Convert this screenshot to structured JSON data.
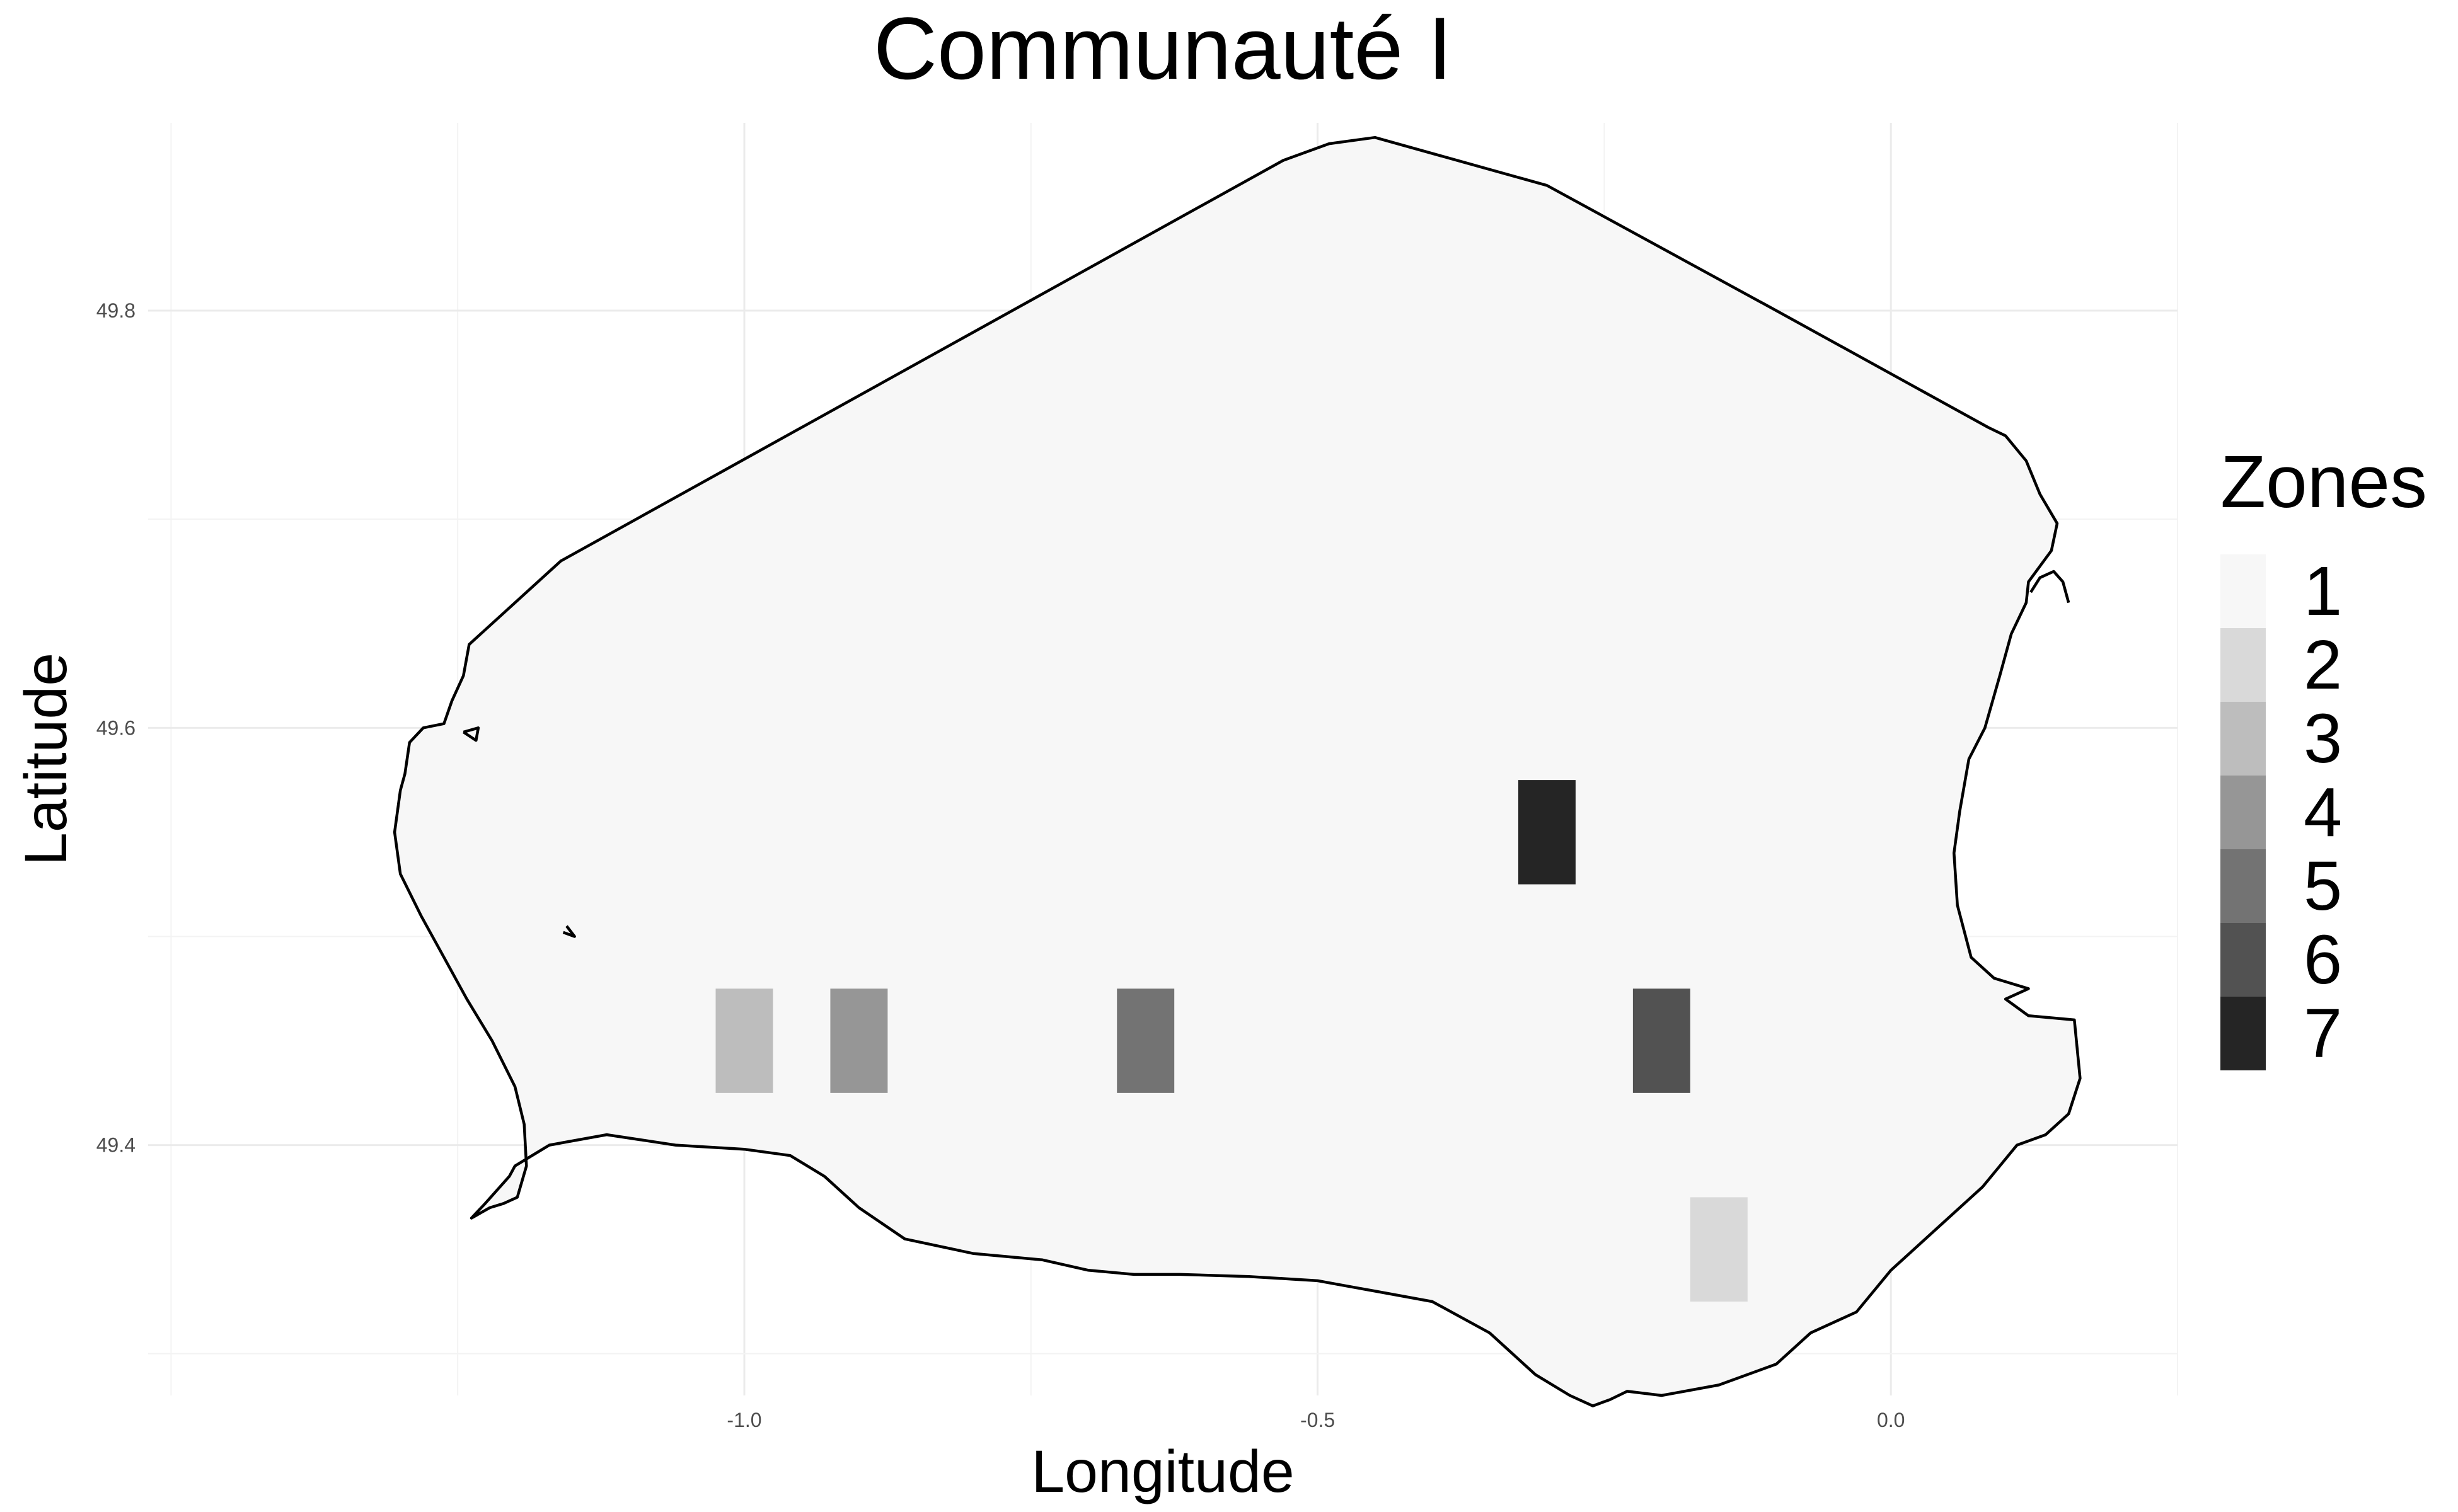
{
  "chart_data": {
    "type": "heatmap",
    "title": "Communauté I",
    "xlabel": "Longitude",
    "ylabel": "Latitude",
    "xlim": [
      -1.52,
      0.25
    ],
    "ylim": [
      49.28,
      49.89
    ],
    "x_ticks": [
      {
        "value": -1.0,
        "label": "-1.0"
      },
      {
        "value": -0.5,
        "label": "-0.5"
      },
      {
        "value": 0.0,
        "label": "0.0"
      }
    ],
    "y_ticks": [
      {
        "value": 49.8,
        "label": "49.8"
      },
      {
        "value": 49.6,
        "label": "49.6"
      },
      {
        "value": 49.4,
        "label": "49.4"
      }
    ],
    "grid": true,
    "background_zone": 1,
    "cell_size": {
      "lon": 0.05,
      "lat": 0.05
    },
    "cells": [
      {
        "lon": -0.3,
        "lat": 49.55,
        "zone": 7
      },
      {
        "lon": -1.0,
        "lat": 49.45,
        "zone": 3
      },
      {
        "lon": -0.9,
        "lat": 49.45,
        "zone": 4
      },
      {
        "lon": -0.65,
        "lat": 49.45,
        "zone": 5
      },
      {
        "lon": -0.2,
        "lat": 49.45,
        "zone": 6
      },
      {
        "lon": -0.15,
        "lat": 49.35,
        "zone": 2
      }
    ],
    "legend": {
      "title": "Zones",
      "position": "right",
      "items": [
        {
          "label": "1",
          "color": "#f7f7f7"
        },
        {
          "label": "2",
          "color": "#d9d9d9"
        },
        {
          "label": "3",
          "color": "#bdbdbd"
        },
        {
          "label": "4",
          "color": "#969696"
        },
        {
          "label": "5",
          "color": "#737373"
        },
        {
          "label": "6",
          "color": "#525252"
        },
        {
          "label": "7",
          "color": "#252525"
        }
      ]
    },
    "coastline": [
      [
        -1.24,
        49.64
      ],
      [
        -1.245,
        49.625
      ],
      [
        -1.255,
        49.613
      ],
      [
        -1.262,
        49.602
      ],
      [
        -1.28,
        49.6
      ],
      [
        -1.292,
        49.593
      ],
      [
        -1.296,
        49.578
      ],
      [
        -1.3,
        49.57
      ],
      [
        -1.305,
        49.55
      ],
      [
        -1.3,
        49.53
      ],
      [
        -1.282,
        49.51
      ],
      [
        -1.262,
        49.49
      ],
      [
        -1.242,
        49.47
      ],
      [
        -1.22,
        49.45
      ],
      [
        -1.2,
        49.428
      ],
      [
        -1.192,
        49.41
      ],
      [
        -1.19,
        49.39
      ],
      [
        -1.198,
        49.375
      ],
      [
        -1.21,
        49.372
      ],
      [
        -1.222,
        49.37
      ],
      [
        -1.238,
        49.365
      ],
      [
        -1.226,
        49.372
      ],
      [
        -1.205,
        49.385
      ],
      [
        -1.2,
        49.39
      ],
      [
        -1.17,
        49.4
      ],
      [
        -1.12,
        49.405
      ],
      [
        -1.06,
        49.4
      ],
      [
        -1.0,
        49.398
      ],
      [
        -0.96,
        49.395
      ],
      [
        -0.93,
        49.385
      ],
      [
        -0.9,
        49.37
      ],
      [
        -0.86,
        49.355
      ],
      [
        -0.8,
        49.348
      ],
      [
        -0.74,
        49.345
      ],
      [
        -0.7,
        49.34
      ],
      [
        -0.66,
        49.338
      ],
      [
        -0.62,
        49.338
      ],
      [
        -0.56,
        49.337
      ],
      [
        -0.5,
        49.335
      ],
      [
        -0.45,
        49.33
      ],
      [
        -0.4,
        49.325
      ],
      [
        -0.35,
        49.31
      ],
      [
        -0.31,
        49.29
      ],
      [
        -0.28,
        49.28
      ],
      [
        -0.26,
        49.275
      ],
      [
        -0.245,
        49.278
      ],
      [
        -0.23,
        49.282
      ],
      [
        -0.2,
        49.28
      ],
      [
        -0.15,
        49.285
      ],
      [
        -0.1,
        49.295
      ],
      [
        -0.07,
        49.31
      ],
      [
        -0.03,
        49.32
      ],
      [
        0.0,
        49.34
      ],
      [
        0.04,
        49.36
      ],
      [
        0.08,
        49.38
      ],
      [
        0.11,
        49.4
      ],
      [
        0.135,
        49.405
      ],
      [
        0.155,
        49.415
      ],
      [
        0.165,
        49.432
      ],
      [
        0.16,
        49.46
      ],
      [
        0.12,
        49.462
      ],
      [
        0.1,
        49.47
      ],
      [
        0.12,
        49.475
      ],
      [
        0.09,
        49.48
      ],
      [
        0.07,
        49.49
      ],
      [
        0.058,
        49.515
      ],
      [
        0.055,
        49.54
      ],
      [
        0.06,
        49.56
      ],
      [
        0.068,
        49.585
      ],
      [
        0.082,
        49.6
      ],
      [
        0.095,
        49.625
      ],
      [
        0.105,
        49.645
      ],
      [
        0.118,
        49.66
      ],
      [
        0.12,
        49.67
      ],
      [
        0.14,
        49.685
      ],
      [
        0.145,
        49.698
      ],
      [
        0.13,
        49.712
      ],
      [
        0.118,
        49.728
      ],
      [
        0.1,
        49.74
      ],
      [
        0.085,
        49.744
      ],
      [
        -0.1,
        49.8
      ],
      [
        -0.3,
        49.86
      ],
      [
        -0.45,
        49.883
      ],
      [
        -0.49,
        49.88
      ],
      [
        -0.53,
        49.872
      ],
      [
        -1.16,
        49.68
      ],
      [
        -1.24,
        49.64
      ]
    ],
    "islands": [
      [
        [
          -1.245,
          49.598
        ],
        [
          -1.232,
          49.6
        ],
        [
          -1.234,
          49.594
        ],
        [
          -1.245,
          49.598
        ]
      ],
      [
        [
          -1.155,
          49.505
        ],
        [
          -1.148,
          49.5
        ],
        [
          -1.158,
          49.502
        ]
      ],
      [
        [
          0.122,
          49.665
        ],
        [
          0.13,
          49.672
        ],
        [
          0.142,
          49.675
        ],
        [
          0.15,
          49.67
        ],
        [
          0.155,
          49.66
        ]
      ]
    ]
  }
}
